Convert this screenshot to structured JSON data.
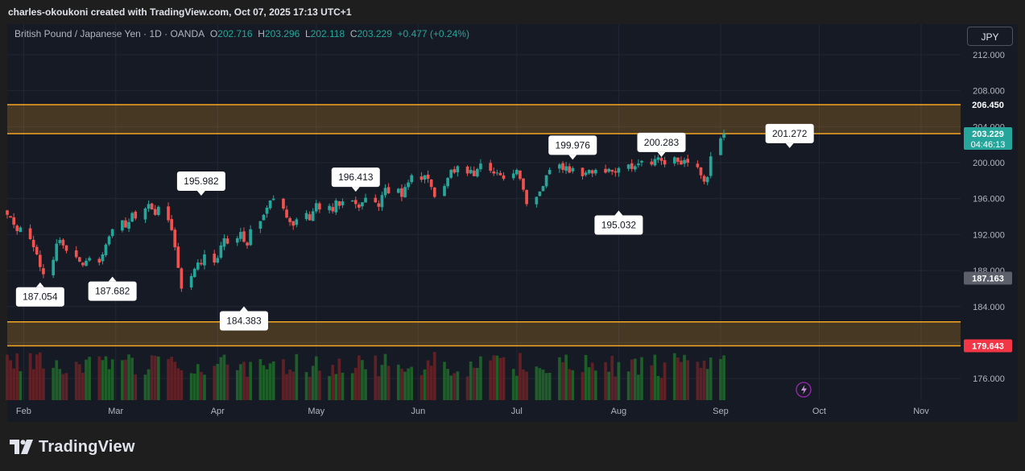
{
  "header": {
    "credit": "charles-okoukoni created with TradingView.com, Oct 07, 2025 17:13 UTC+1"
  },
  "legend": {
    "symbol": "British Pound / Japanese Yen · 1D · OANDA",
    "o_label": "O",
    "o": "202.716",
    "h_label": "H",
    "h": "203.296",
    "l_label": "L",
    "l": "202.118",
    "c_label": "C",
    "c": "203.229",
    "change": "+0.477 (+0.24%)"
  },
  "currency_button": "JPY",
  "footer": {
    "brand": "TradingView"
  },
  "colors": {
    "up": "#26a69a",
    "down": "#ef5350",
    "zone": "#f5a623",
    "vol_up": "#1f6b2a",
    "vol_down": "#6d2327",
    "price_tag": "#26a69a",
    "sell_tag": "#f23645"
  },
  "chart_data": {
    "type": "candlestick",
    "symbol": "GBPJPY",
    "interval": "1D",
    "ylim": [
      173.6,
      215.4
    ],
    "xlim": [
      "2025-01-27",
      "2025-11-13"
    ],
    "y_ticks": [
      "176.000",
      "180.000",
      "184.000",
      "188.000",
      "192.000",
      "196.000",
      "200.000",
      "204.000",
      "208.000",
      "212.000"
    ],
    "x_ticks": [
      {
        "label": "Feb",
        "date": "2025-02-01"
      },
      {
        "label": "Mar",
        "date": "2025-03-01"
      },
      {
        "label": "Apr",
        "date": "2025-04-01"
      },
      {
        "label": "May",
        "date": "2025-05-01"
      },
      {
        "label": "Jun",
        "date": "2025-06-01"
      },
      {
        "label": "Jul",
        "date": "2025-07-01"
      },
      {
        "label": "Aug",
        "date": "2025-08-01"
      },
      {
        "label": "Sep",
        "date": "2025-09-01"
      },
      {
        "label": "Oct",
        "date": "2025-10-01"
      },
      {
        "label": "Nov",
        "date": "2025-11-01"
      }
    ],
    "zones": [
      {
        "top": 206.45,
        "bottom": 203.229
      },
      {
        "top": 182.3,
        "bottom": 179.643
      }
    ],
    "price_labels": [
      {
        "value": 206.45,
        "text": "206.450",
        "style": "dark"
      },
      {
        "value": 203.229,
        "text": "203.229",
        "sub": "04:46:13",
        "style": "green"
      },
      {
        "value": 187.163,
        "text": "187.163",
        "style": "gray"
      },
      {
        "value": 179.643,
        "text": "179.643",
        "style": "red"
      }
    ],
    "annotations": [
      {
        "date": "2025-02-06",
        "value": 187.054,
        "text": "187.054",
        "pos": "below"
      },
      {
        "date": "2025-02-28",
        "value": 187.682,
        "text": "187.682",
        "pos": "below"
      },
      {
        "date": "2025-03-27",
        "value": 195.982,
        "text": "195.982",
        "pos": "above"
      },
      {
        "date": "2025-04-09",
        "value": 184.383,
        "text": "184.383",
        "pos": "below"
      },
      {
        "date": "2025-05-13",
        "value": 196.413,
        "text": "196.413",
        "pos": "above"
      },
      {
        "date": "2025-07-18",
        "value": 199.976,
        "text": "199.976",
        "pos": "above"
      },
      {
        "date": "2025-08-01",
        "value": 195.032,
        "text": "195.032",
        "pos": "below"
      },
      {
        "date": "2025-08-14",
        "value": 200.283,
        "text": "200.283",
        "pos": "above"
      },
      {
        "date": "2025-09-22",
        "value": 201.272,
        "text": "201.272",
        "pos": "above"
      }
    ],
    "closes": {
      "start": "2025-01-27",
      "values": [
        194.2,
        193.9,
        193.1,
        192.4,
        192.8,
        191.5,
        190.6,
        189.8,
        188.4,
        187.6,
        189.2,
        191.0,
        191.4,
        190.8,
        190.2,
        189.5,
        189.0,
        188.6,
        189.1,
        189.4,
        188.9,
        189.8,
        190.9,
        191.8,
        192.6,
        193.6,
        192.8,
        193.4,
        194.4,
        193.8,
        194.9,
        195.4,
        194.8,
        194.2,
        195.1,
        193.6,
        192.5,
        190.6,
        188.3,
        186.0,
        187.4,
        188.2,
        188.9,
        188.7,
        189.8,
        188.9,
        189.4,
        190.8,
        191.6,
        191.0,
        191.6,
        192.3,
        191.2,
        190.8,
        192.6,
        193.5,
        194.2,
        195.0,
        195.8,
        196.0,
        194.9,
        193.9,
        193.4,
        193.0,
        193.7,
        194.4,
        193.6,
        194.6,
        195.5,
        194.8,
        195.2,
        194.6,
        195.8,
        195.2,
        195.7,
        195.8,
        195.4,
        195.0,
        195.6,
        196.1,
        195.6,
        195.1,
        196.4,
        197.2,
        196.6,
        197.1,
        196.2,
        197.3,
        197.8,
        198.6,
        198.1,
        198.6,
        198.2,
        197.3,
        196.2,
        197.4,
        198.3,
        199.2,
        198.9,
        199.6,
        198.8,
        199.2,
        198.5,
        199.3,
        199.9,
        199.1,
        198.8,
        198.9,
        198.6,
        198.2,
        198.8,
        199.2,
        198.2,
        197.0,
        195.4,
        196.2,
        196.8,
        197.4,
        198.6,
        199.2,
        199.8,
        199.2,
        199.6,
        198.9,
        199.4,
        198.5,
        198.9,
        199.2,
        198.8,
        199.2,
        198.9,
        199.3,
        199.0,
        198.9,
        199.4,
        199.8,
        199.3,
        199.6,
        199.9,
        200.2,
        199.8,
        200.4,
        200.6,
        200.2,
        199.8,
        200.6,
        200.1,
        199.8,
        200.3,
        200.0,
        199.5,
        198.6,
        197.9,
        198.4,
        200.7,
        202.7,
        203.2
      ]
    },
    "series": [
      {
        "name": "GBPJPY daily",
        "type": "candlestick",
        "values_key": "closes"
      },
      {
        "name": "Volume",
        "type": "bar",
        "values_key": "closes"
      }
    ]
  }
}
